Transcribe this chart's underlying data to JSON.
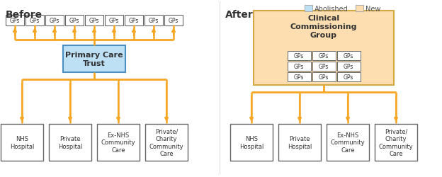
{
  "fig_width": 6.24,
  "fig_height": 2.51,
  "dpi": 100,
  "bg_color": "#ffffff",
  "arrow_color": "#F5A623",
  "abolished_color": "#BDE0F5",
  "new_color": "#FDDEB0",
  "new_edge_color": "#D4A843",
  "box_edge_color": "#666666",
  "text_color": "#333333",
  "before_title": "Before",
  "after_title": "After",
  "legend_abolished": "Abolished",
  "legend_new": "New",
  "gps_label": "GPs",
  "pct_label": "Primary Care\nTrust",
  "ccg_label": "Clinical\nCommissioning\nGroup",
  "bottom_labels": [
    "NHS\nHospital",
    "Private\nHospital",
    "Ex-NHS\nCommunity\nCare",
    "Private/\nCharity\nCommunity\nCare"
  ]
}
